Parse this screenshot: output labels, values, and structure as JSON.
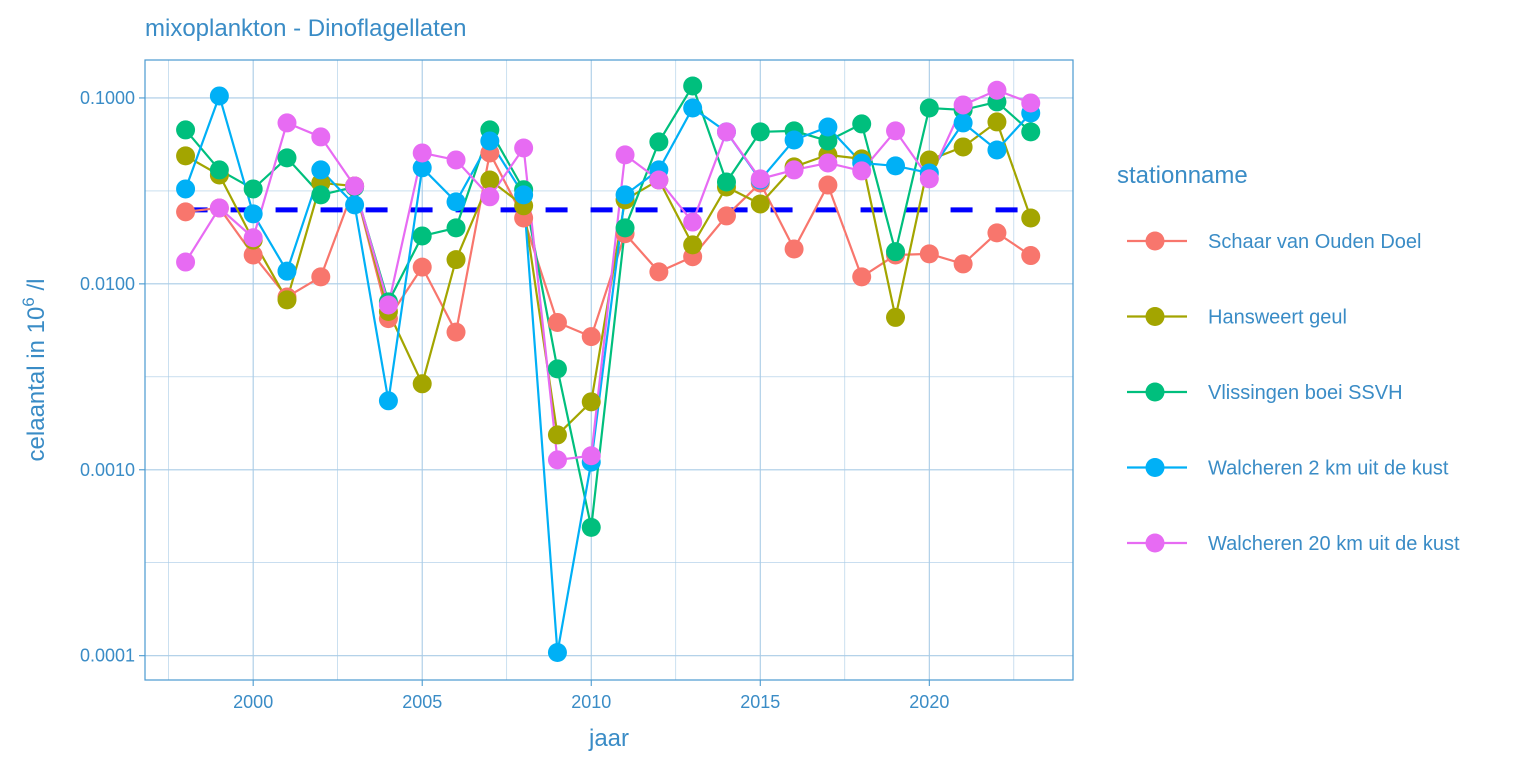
{
  "chart_data": {
    "type": "line",
    "title": "mixoplankton - Dinoflagellaten",
    "xlabel": "jaar",
    "ylabel": "celaantal in  10",
    "ylabel_sup": "6",
    "ylabel_suffix": " /l",
    "y_scale": "log10",
    "xlim": [
      1996.8,
      2024.25
    ],
    "ylim": [
      7.4e-05,
      0.16
    ],
    "x_ticks": [
      2000,
      2005,
      2010,
      2015,
      2020
    ],
    "x_tick_labels": [
      "2000",
      "2005",
      "2010",
      "2015",
      "2020"
    ],
    "y_ticks": [
      0.0001,
      0.001,
      0.01,
      0.1
    ],
    "y_tick_labels": [
      "0.0001",
      "0.0010",
      "0.0100",
      "0.1000"
    ],
    "grid": true,
    "legend_title": "stationname",
    "legend_position": "right",
    "reference_line": {
      "value": 0.025,
      "style": "dashed",
      "color": "#0000FF"
    },
    "x": [
      1998,
      1999,
      2000,
      2001,
      2002,
      2003,
      2004,
      2005,
      2006,
      2007,
      2008,
      2009,
      2010,
      2011,
      2012,
      2013,
      2014,
      2015,
      2016,
      2017,
      2018,
      2019,
      2020,
      2021,
      2022,
      2023
    ],
    "series": [
      {
        "name": "Schaar van Ouden Doel",
        "color": "#F8766D",
        "values": [
          0.0244,
          0.0256,
          0.0143,
          0.0085,
          0.0109,
          0.0336,
          0.0065,
          0.0123,
          0.0055,
          0.0506,
          0.0226,
          0.0062,
          0.0052,
          0.0186,
          0.0116,
          0.014,
          0.0232,
          0.0349,
          0.0154,
          0.034,
          0.0109,
          0.0143,
          0.0145,
          0.0128,
          0.0188,
          0.0142
        ]
      },
      {
        "name": "Hansweert geul",
        "color": "#A3A500",
        "values": [
          0.0488,
          0.0385,
          0.0172,
          0.0082,
          0.0349,
          0.0336,
          0.0071,
          0.0029,
          0.0135,
          0.0362,
          0.0263,
          0.00154,
          0.00232,
          0.0283,
          0.0362,
          0.0162,
          0.0332,
          0.0269,
          0.0426,
          0.0494,
          0.047,
          0.0066,
          0.0464,
          0.0545,
          0.0743,
          0.0226
        ]
      },
      {
        "name": "Vlissingen boei SSVH",
        "color": "#00BF7D",
        "values": [
          0.0673,
          0.041,
          0.0324,
          0.0476,
          0.0301,
          0.0332,
          0.008,
          0.0181,
          0.02,
          0.0673,
          0.0321,
          0.00349,
          0.00049,
          0.02,
          0.058,
          0.116,
          0.0353,
          0.0657,
          0.0665,
          0.0587,
          0.0725,
          0.0149,
          0.0883,
          0.0862,
          0.0952,
          0.0657
        ]
      },
      {
        "name": "Walcheren 2 km uit de kust",
        "color": "#00B0F6",
        "values": [
          0.0324,
          0.1025,
          0.0238,
          0.0117,
          0.041,
          0.0266,
          0.00235,
          0.0421,
          0.0276,
          0.0587,
          0.0301,
          0.000104,
          0.0011,
          0.0301,
          0.041,
          0.0883,
          0.0657,
          0.0362,
          0.0594,
          0.0698,
          0.0447,
          0.0431,
          0.0395,
          0.0734,
          0.0525,
          0.083
        ]
      },
      {
        "name": "Walcheren 20 km uit de kust",
        "color": "#E76BF3",
        "values": [
          0.0131,
          0.0256,
          0.0177,
          0.0734,
          0.0617,
          0.0336,
          0.0077,
          0.0506,
          0.0464,
          0.0294,
          0.0538,
          0.00113,
          0.00119,
          0.0494,
          0.0362,
          0.0215,
          0.0657,
          0.0367,
          0.041,
          0.0447,
          0.0405,
          0.0665,
          0.0367,
          0.0917,
          0.11,
          0.094
        ]
      }
    ]
  },
  "colors": {
    "text": "#3A8CC6",
    "grid": "#A9CBE6",
    "panel_border": "#4A9AD0"
  }
}
